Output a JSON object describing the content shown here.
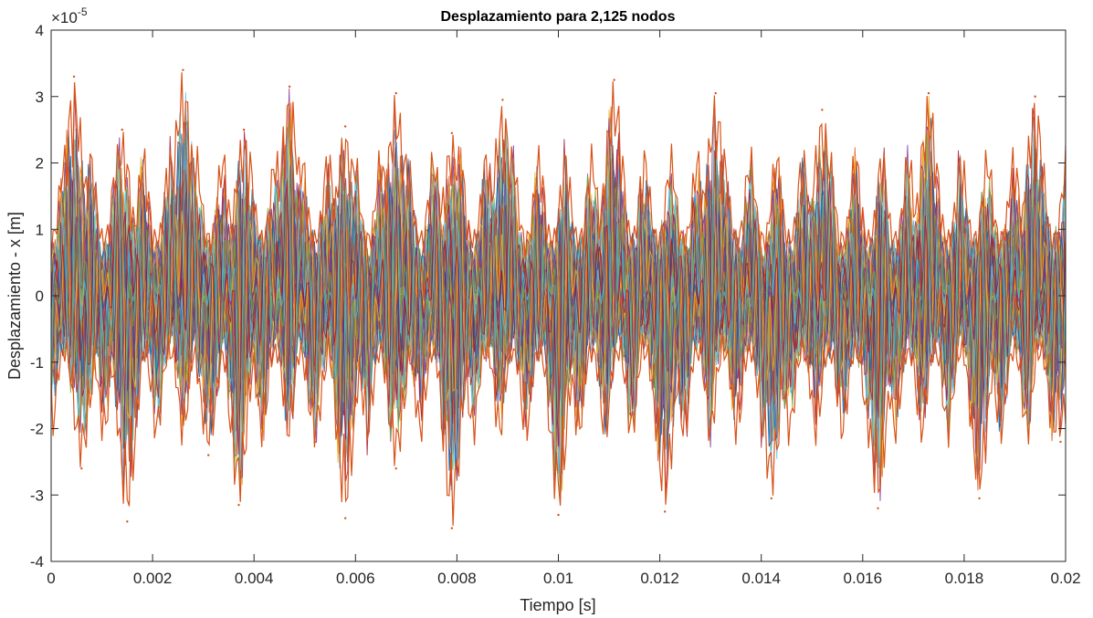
{
  "chart_data": {
    "type": "line",
    "title": "Desplazamiento para 2,125 nodos",
    "xlabel": "Tiempo [s]",
    "ylabel": "Desplazamiento - x [m]",
    "y_exponent_base": "×10",
    "y_exponent_power": "-5",
    "xlim": [
      0,
      0.02
    ],
    "ylim": [
      -4,
      4
    ],
    "y_scale_factor": 1e-05,
    "x_ticks": [
      0,
      0.002,
      0.004,
      0.006,
      0.008,
      0.01,
      0.012,
      0.014,
      0.016,
      0.018,
      0.02
    ],
    "x_tick_labels": [
      "0",
      "0.002",
      "0.004",
      "0.006",
      "0.008",
      "0.01",
      "0.012",
      "0.014",
      "0.016",
      "0.018",
      "0.02"
    ],
    "y_ticks": [
      -4,
      -3,
      -2,
      -1,
      0,
      1,
      2,
      3,
      4
    ],
    "y_tick_labels": [
      "-4",
      "-3",
      "-2",
      "-1",
      "0",
      "1",
      "2",
      "3",
      "4"
    ],
    "grid": false,
    "box": true,
    "series_count": 2125,
    "envelope": {
      "description_units": "x in s, y in 1e-5 m",
      "peaks": [
        {
          "x": 0.00045,
          "y": 3.3
        },
        {
          "x": 0.0006,
          "y": -2.6
        },
        {
          "x": 0.0015,
          "y": -3.4
        },
        {
          "x": 0.0014,
          "y": 2.5
        },
        {
          "x": 0.0026,
          "y": 3.4
        },
        {
          "x": 0.0031,
          "y": -2.4
        },
        {
          "x": 0.0037,
          "y": -3.15
        },
        {
          "x": 0.0038,
          "y": 2.5
        },
        {
          "x": 0.0047,
          "y": 3.15
        },
        {
          "x": 0.0052,
          "y": -2.2
        },
        {
          "x": 0.0058,
          "y": -3.35
        },
        {
          "x": 0.0058,
          "y": 2.55
        },
        {
          "x": 0.0068,
          "y": 3.05
        },
        {
          "x": 0.0068,
          "y": -2.6
        },
        {
          "x": 0.0079,
          "y": -3.5
        },
        {
          "x": 0.0079,
          "y": 2.45
        },
        {
          "x": 0.0089,
          "y": 2.95
        },
        {
          "x": 0.01,
          "y": -3.3
        },
        {
          "x": 0.0111,
          "y": 3.25
        },
        {
          "x": 0.0121,
          "y": -3.25
        },
        {
          "x": 0.0131,
          "y": 3.05
        },
        {
          "x": 0.0142,
          "y": -3.05
        },
        {
          "x": 0.0152,
          "y": 2.8
        },
        {
          "x": 0.0163,
          "y": -3.2
        },
        {
          "x": 0.0173,
          "y": 3.05
        },
        {
          "x": 0.0183,
          "y": -3.05
        },
        {
          "x": 0.0194,
          "y": 3.0
        },
        {
          "x": 0.0199,
          "y": -2.2
        }
      ]
    }
  }
}
